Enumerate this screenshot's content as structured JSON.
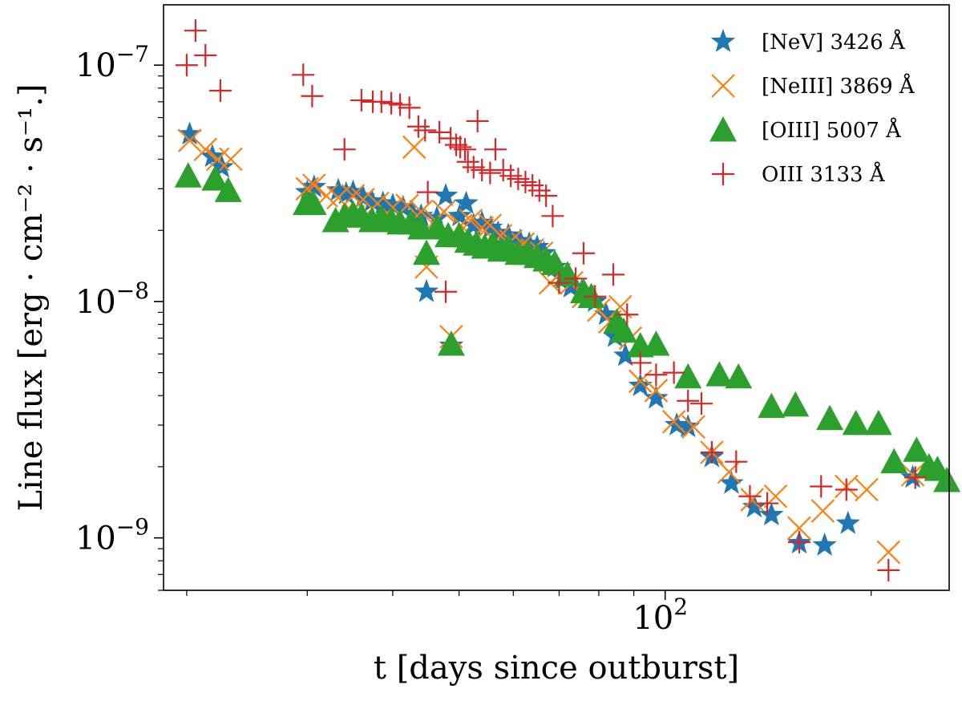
{
  "chart_data": {
    "type": "scatter",
    "xscale": "log",
    "yscale": "log",
    "xlim": [
      18.5,
      260
    ],
    "ylim": [
      6e-10,
      1.8e-07
    ],
    "xlabel": "t [days since outburst]",
    "ylabel": "Line flux [erg · cm⁻² · s⁻¹.]",
    "xticks": [
      {
        "value": 100,
        "base": "10",
        "exp": "2"
      }
    ],
    "yticks": [
      {
        "value": 1e-09,
        "base": "10",
        "exp": "−9"
      },
      {
        "value": 1e-08,
        "base": "10",
        "exp": "−8"
      },
      {
        "value": 1e-07,
        "base": "10",
        "exp": "−7"
      }
    ],
    "legend_position": "top-right",
    "series": [
      {
        "name": "[NeV] 3426 Å",
        "marker": "star",
        "color": "#1f77b4",
        "points": [
          [
            20.2,
            5.1e-08
          ],
          [
            21.8,
            4.1e-08
          ],
          [
            22.5,
            3.7e-08
          ],
          [
            30,
            2.9e-08
          ],
          [
            30.7,
            3.05e-08
          ],
          [
            33.3,
            2.95e-08
          ],
          [
            34.2,
            2.85e-08
          ],
          [
            35,
            2.9e-08
          ],
          [
            36.2,
            2.75e-08
          ],
          [
            37.3,
            2.65e-08
          ],
          [
            38.7,
            2.6e-08
          ],
          [
            40,
            2.55e-08
          ],
          [
            41.4,
            2.5e-08
          ],
          [
            42.8,
            2.35e-08
          ],
          [
            44,
            2.3e-08
          ],
          [
            44.8,
            1.1e-08
          ],
          [
            46.4,
            2.25e-08
          ],
          [
            47.8,
            2.8e-08
          ],
          [
            48.7,
            6.5e-09
          ],
          [
            50.1,
            2.3e-08
          ],
          [
            51.2,
            2.6e-08
          ],
          [
            52.5,
            2.1e-08
          ],
          [
            54,
            2.15e-08
          ],
          [
            55.6,
            2.05e-08
          ],
          [
            57,
            1.95e-08
          ],
          [
            59,
            1.9e-08
          ],
          [
            61.4,
            1.8e-08
          ],
          [
            63.3,
            1.75e-08
          ],
          [
            65,
            1.7e-08
          ],
          [
            66.5,
            1.6e-08
          ],
          [
            69,
            1.4e-08
          ],
          [
            71,
            1.25e-08
          ],
          [
            72.8,
            1.15e-08
          ],
          [
            75.5,
            1.1e-08
          ],
          [
            79,
            1e-08
          ],
          [
            82,
            8.8e-09
          ],
          [
            84.5,
            7.1e-09
          ],
          [
            87.5,
            5.9e-09
          ],
          [
            92,
            4.4e-09
          ],
          [
            97,
            3.9e-09
          ],
          [
            104,
            3e-09
          ],
          [
            108,
            2.95e-09
          ],
          [
            117,
            2.2e-09
          ],
          [
            125,
            1.7e-09
          ],
          [
            135,
            1.35e-09
          ],
          [
            143,
            1.25e-09
          ],
          [
            157,
            9.5e-10
          ],
          [
            171,
            9.3e-10
          ],
          [
            185,
            1.15e-09
          ],
          [
            230,
            1.8e-09
          ]
        ]
      },
      {
        "name": "[NeIII] 3869 Å",
        "marker": "x",
        "color": "#ff7f0e",
        "points": [
          [
            20.2,
            4.8e-08
          ],
          [
            21.3,
            4.4e-08
          ],
          [
            22.2,
            4e-08
          ],
          [
            23.2,
            4e-08
          ],
          [
            30,
            3e-08
          ],
          [
            30.7,
            3.1e-08
          ],
          [
            32,
            2.8e-08
          ],
          [
            33.3,
            2.75e-08
          ],
          [
            35,
            2.8e-08
          ],
          [
            36.2,
            2.7e-08
          ],
          [
            38,
            2.6e-08
          ],
          [
            40,
            2.5e-08
          ],
          [
            42,
            2.55e-08
          ],
          [
            43,
            4.5e-08
          ],
          [
            44,
            2.4e-08
          ],
          [
            44.8,
            1.4e-08
          ],
          [
            46.2,
            2.2e-08
          ],
          [
            47.5,
            2.4e-08
          ],
          [
            48.7,
            7.1e-09
          ],
          [
            50.3,
            2.1e-08
          ],
          [
            52,
            2.2e-08
          ],
          [
            54,
            2.05e-08
          ],
          [
            55.5,
            2.1e-08
          ],
          [
            57.5,
            1.9e-08
          ],
          [
            59.5,
            1.8e-08
          ],
          [
            62,
            1.75e-08
          ],
          [
            64,
            1.65e-08
          ],
          [
            66,
            1.6e-08
          ],
          [
            68,
            1.2e-08
          ],
          [
            70,
            1.3e-08
          ],
          [
            73,
            1.2e-08
          ],
          [
            76,
            1.05e-08
          ],
          [
            80,
            9.2e-09
          ],
          [
            83,
            8.2e-09
          ],
          [
            86,
            9.5e-09
          ],
          [
            89,
            7e-09
          ],
          [
            92,
            4.6e-09
          ],
          [
            97,
            4.2e-09
          ],
          [
            103,
            3.1e-09
          ],
          [
            110,
            2.95e-09
          ],
          [
            117,
            2.3e-09
          ],
          [
            124,
            1.9e-09
          ],
          [
            134,
            1.45e-09
          ],
          [
            145,
            1.5e-09
          ],
          [
            157,
            1.1e-09
          ],
          [
            170,
            1.3e-09
          ],
          [
            184,
            1.65e-09
          ],
          [
            197,
            1.6e-09
          ],
          [
            212,
            8.7e-10
          ],
          [
            230,
            1.85e-09
          ]
        ]
      },
      {
        "name": "[OIII] 5007 Å",
        "marker": "triangle",
        "color": "#2ca02c",
        "points": [
          [
            20.1,
            3.4e-08
          ],
          [
            22,
            3.3e-08
          ],
          [
            23,
            2.95e-08
          ],
          [
            29.9,
            2.6e-08
          ],
          [
            30.6,
            2.6e-08
          ],
          [
            33,
            2.2e-08
          ],
          [
            34,
            2.3e-08
          ],
          [
            35,
            2.35e-08
          ],
          [
            36,
            2.3e-08
          ],
          [
            37.3,
            2.2e-08
          ],
          [
            38.5,
            2.25e-08
          ],
          [
            39.8,
            2.2e-08
          ],
          [
            41,
            2.15e-08
          ],
          [
            42.5,
            2.15e-08
          ],
          [
            44,
            2.05e-08
          ],
          [
            44.8,
            1.6e-08
          ],
          [
            46.5,
            2.05e-08
          ],
          [
            48.2,
            1.9e-08
          ],
          [
            48.7,
            6.6e-09
          ],
          [
            50,
            1.9e-08
          ],
          [
            51.5,
            1.8e-08
          ],
          [
            53,
            1.75e-08
          ],
          [
            54.5,
            1.7e-08
          ],
          [
            56,
            1.75e-08
          ],
          [
            57.5,
            1.65e-08
          ],
          [
            59,
            1.7e-08
          ],
          [
            61,
            1.6e-08
          ],
          [
            63,
            1.6e-08
          ],
          [
            65,
            1.55e-08
          ],
          [
            67,
            1.5e-08
          ],
          [
            69,
            1.45e-08
          ],
          [
            72,
            1.3e-08
          ],
          [
            76,
            1.1e-08
          ],
          [
            78,
            1.05e-08
          ],
          [
            85,
            8.2e-09
          ],
          [
            87,
            7.5e-09
          ],
          [
            92,
            6.5e-09
          ],
          [
            97,
            6.6e-09
          ],
          [
            108,
            4.8e-09
          ],
          [
            120,
            4.9e-09
          ],
          [
            128,
            4.8e-09
          ],
          [
            143,
            3.6e-09
          ],
          [
            155,
            3.65e-09
          ],
          [
            174,
            3.2e-09
          ],
          [
            190,
            3.05e-09
          ],
          [
            205,
            3.05e-09
          ],
          [
            216,
            2.1e-09
          ],
          [
            233,
            2.35e-09
          ],
          [
            243,
            2e-09
          ],
          [
            250,
            1.95e-09
          ],
          [
            258,
            1.75e-09
          ]
        ]
      },
      {
        "name": "OIII 3133 Å",
        "marker": "plus",
        "color": "#d62728",
        "points": [
          [
            20,
            1e-07
          ],
          [
            20.6,
            1.4e-07
          ],
          [
            21.3,
            1.1e-07
          ],
          [
            22.4,
            7.8e-08
          ],
          [
            29.6,
            9.1e-08
          ],
          [
            30.5,
            7.4e-08
          ],
          [
            34,
            4.4e-08
          ],
          [
            36,
            7.1e-08
          ],
          [
            37.4,
            7e-08
          ],
          [
            38.5,
            7e-08
          ],
          [
            39.8,
            6.9e-08
          ],
          [
            41,
            6.8e-08
          ],
          [
            42.3,
            6.6e-08
          ],
          [
            43.6,
            5.5e-08
          ],
          [
            44.6,
            5.3e-08
          ],
          [
            45,
            2.9e-08
          ],
          [
            46.8,
            5.2e-08
          ],
          [
            47.8,
            1.1e-08
          ],
          [
            48.6,
            4.9e-08
          ],
          [
            49.5,
            4.6e-08
          ],
          [
            50.2,
            4.5e-08
          ],
          [
            51,
            4.4e-08
          ],
          [
            51.5,
            3.9e-08
          ],
          [
            52.5,
            3.7e-08
          ],
          [
            53.2,
            5.8e-08
          ],
          [
            54,
            3.6e-08
          ],
          [
            55.5,
            3.5e-08
          ],
          [
            56.5,
            4.4e-08
          ],
          [
            58,
            3.6e-08
          ],
          [
            59.5,
            3.4e-08
          ],
          [
            61,
            3.3e-08
          ],
          [
            62.5,
            3.2e-08
          ],
          [
            64,
            3.1e-08
          ],
          [
            65.5,
            2.95e-08
          ],
          [
            67,
            2.8e-08
          ],
          [
            68.5,
            2.3e-08
          ],
          [
            70,
            1.2e-08
          ],
          [
            74,
            1.25e-08
          ],
          [
            76,
            1.6e-08
          ],
          [
            79,
            1.05e-08
          ],
          [
            84,
            1.3e-08
          ],
          [
            88,
            8.8e-09
          ],
          [
            92,
            5.5e-09
          ],
          [
            97,
            4.9e-09
          ],
          [
            103,
            5e-09
          ],
          [
            108,
            3.8e-09
          ],
          [
            113,
            3.7e-09
          ],
          [
            117,
            2.3e-09
          ],
          [
            127,
            2.1e-09
          ],
          [
            133,
            1.5e-09
          ],
          [
            141,
            1.4e-09
          ],
          [
            157,
            9.6e-10
          ],
          [
            169,
            1.65e-09
          ],
          [
            184,
            1.6e-09
          ],
          [
            212,
            7.3e-10
          ],
          [
            232,
            1.8e-09
          ]
        ]
      }
    ]
  }
}
